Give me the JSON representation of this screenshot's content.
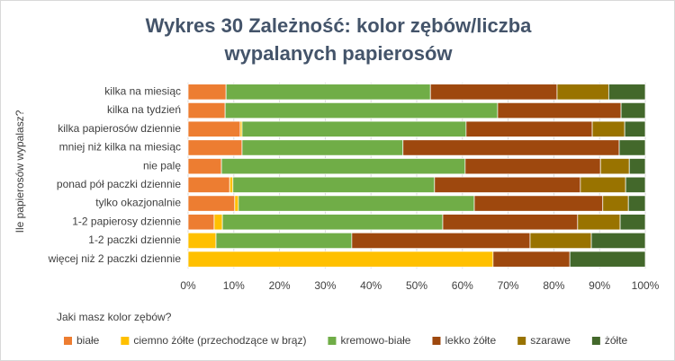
{
  "chart_data": {
    "type": "stacked-barh",
    "title": "Wykres 30 Zależność: kolor zębów/liczba wypalanych papierosów",
    "y_label": "Ile papierosów wypalasz?",
    "legend_title": "Jaki masz kolor zębów?",
    "categories": [
      "kilka na miesiąc",
      "kilka na tydzień",
      "kilka papierosów dziennie",
      "mniej niż kilka na miesiąc",
      "nie palę",
      "ponad pół paczki dziennie",
      "tylko okazjonalnie",
      "1-2 papierosy dziennie",
      "1-2 paczki dziennie",
      "więcej niż 2 paczki dziennie"
    ],
    "series": [
      {
        "name": "białe",
        "color": "#ed7d31",
        "values": [
          8.3,
          8.1,
          11.4,
          11.8,
          7.3,
          9.1,
          10.2,
          5.7,
          0,
          0
        ]
      },
      {
        "name": "ciemno żółte (przechodzące w brąz)",
        "color": "#ffc000",
        "values": [
          0,
          0,
          0.4,
          0,
          0,
          0.7,
          0.8,
          1.8,
          6.1,
          66.7
        ]
      },
      {
        "name": "kremowo-białe",
        "color": "#70ad47",
        "values": [
          44.7,
          59.6,
          49,
          35.2,
          53.3,
          44.1,
          51.6,
          48.2,
          29.7,
          0
        ]
      },
      {
        "name": "lekko żółte",
        "color": "#9e480e",
        "values": [
          27.7,
          27,
          27.6,
          47.3,
          29.6,
          31.9,
          28.1,
          29.5,
          39,
          16.8
        ]
      },
      {
        "name": "szarawe",
        "color": "#997300",
        "values": [
          11.3,
          0,
          7.1,
          0,
          6.3,
          9.9,
          5.6,
          9.3,
          13.4,
          0
        ]
      },
      {
        "name": "żółte",
        "color": "#43682b",
        "values": [
          8,
          5.3,
          4.5,
          5.7,
          3.5,
          4.3,
          3.7,
          5.5,
          11.8,
          16.5
        ]
      }
    ],
    "xlim": [
      0,
      100
    ],
    "xticks": [
      {
        "value": 0,
        "label": "0%"
      },
      {
        "value": 10,
        "label": "10%"
      },
      {
        "value": 20,
        "label": "20%"
      },
      {
        "value": 30,
        "label": "30%"
      },
      {
        "value": 40,
        "label": "40%"
      },
      {
        "value": 50,
        "label": "50%"
      },
      {
        "value": 60,
        "label": "60%"
      },
      {
        "value": 70,
        "label": "70%"
      },
      {
        "value": 80,
        "label": "80%"
      },
      {
        "value": 90,
        "label": "90%"
      },
      {
        "value": 100,
        "label": "100%"
      }
    ],
    "grid": true,
    "legend": "bottom"
  }
}
